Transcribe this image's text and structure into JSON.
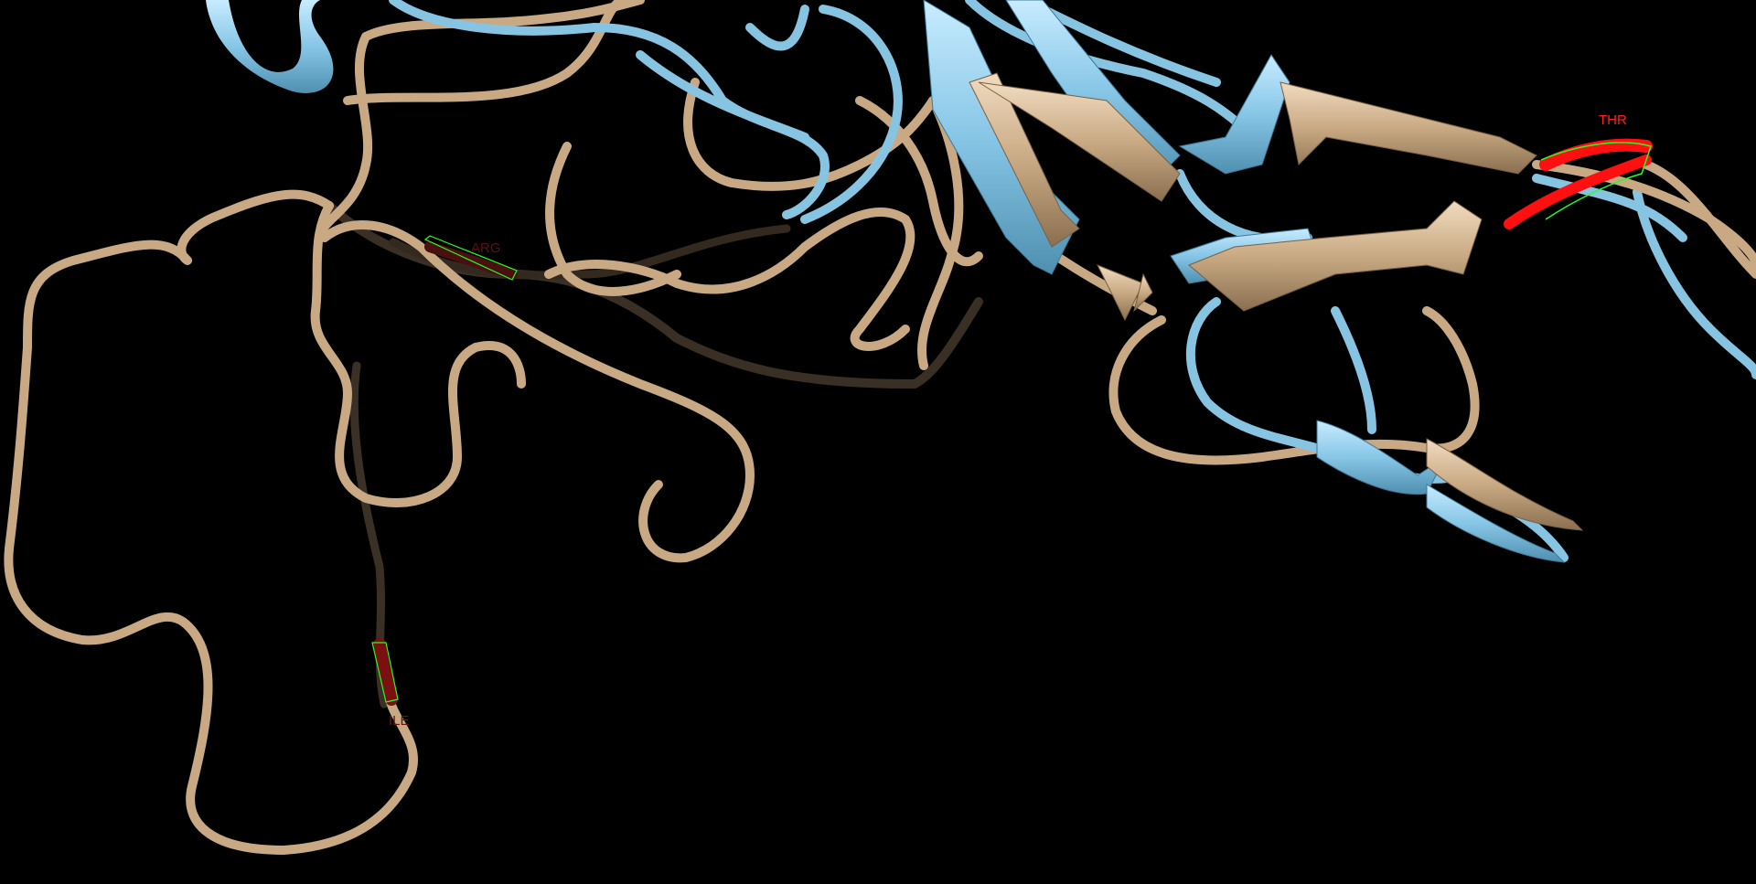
{
  "scene": {
    "background_color": "#000000",
    "models": [
      {
        "id": "model-tan",
        "color": "#d2b48c"
      },
      {
        "id": "model-blue",
        "color": "#87ceeb"
      }
    ],
    "selection_color": "#00ff00",
    "highlight_color": "#ff0000",
    "residue_labels": {
      "thr": "THR",
      "arg": "ARG",
      "ile": "ILE"
    }
  }
}
